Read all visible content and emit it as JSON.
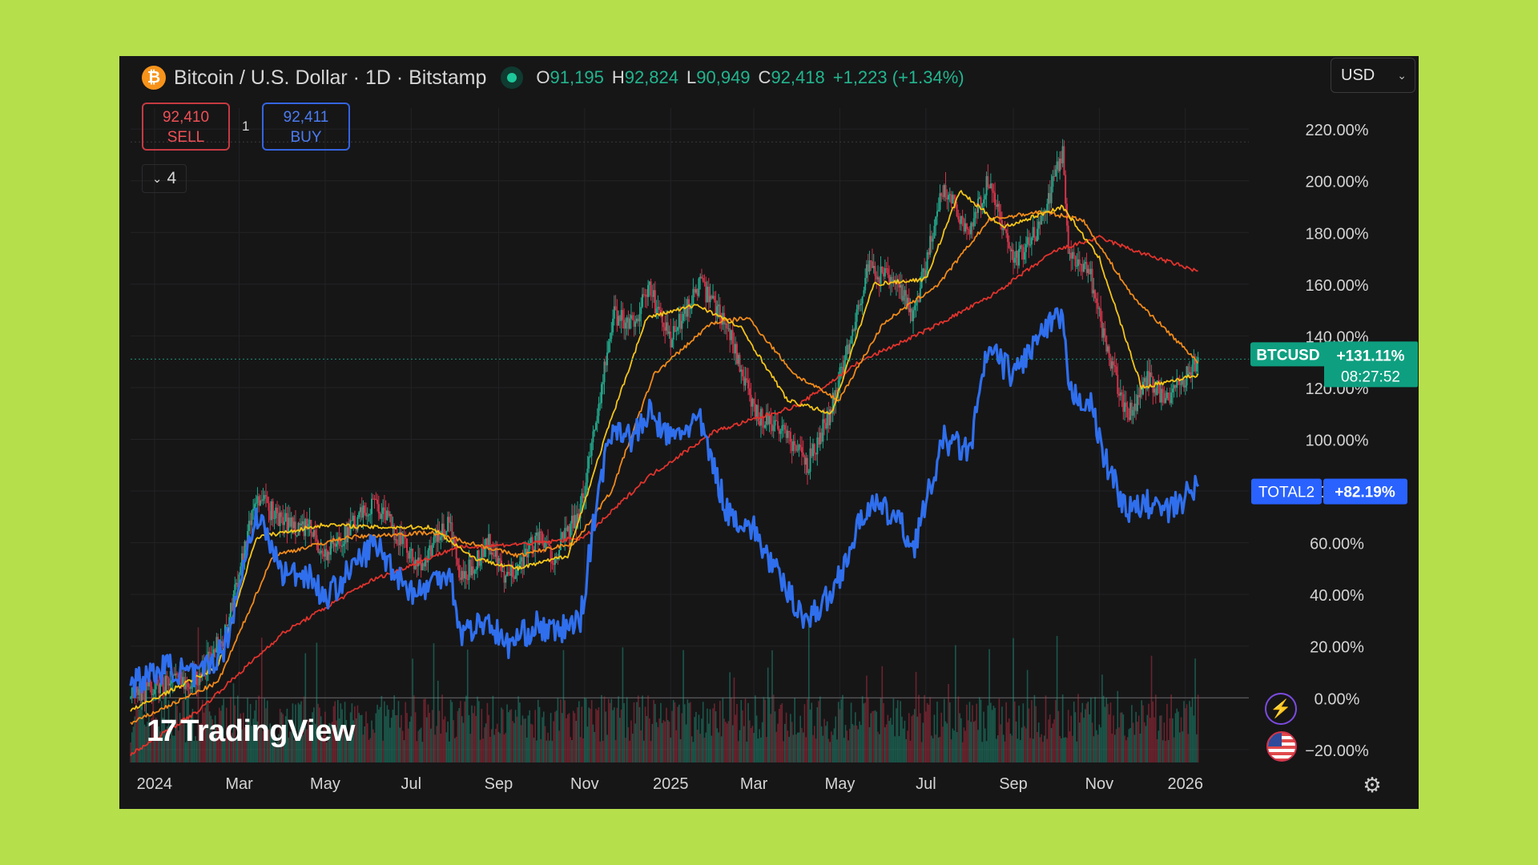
{
  "legend": {
    "symbol_title": "Bitcoin / U.S. Dollar · 1D · Bitstamp",
    "coin_glyph": "₿",
    "ohlc": {
      "o_label": "O",
      "o": "91,195",
      "h_label": "H",
      "h": "92,824",
      "l_label": "L",
      "l": "90,949",
      "c_label": "C",
      "c": "92,418",
      "change": "+1,223 (+1.34%)"
    }
  },
  "currency_select": {
    "value": "USD"
  },
  "trade": {
    "sell_price": "92,410",
    "sell_label": "SELL",
    "buy_price": "92,411",
    "buy_label": "BUY",
    "spread": "1"
  },
  "indicators_toggle": {
    "count": "4"
  },
  "watermark": {
    "text": "TradingView",
    "logo": "17"
  },
  "colors": {
    "background": "#161617",
    "grid": "#232325",
    "btc_up": "#22a78a",
    "btc_down": "#d1344a",
    "total2": "#2f6fee",
    "ma_yellow": "#f5c518",
    "ma_orange": "#f08a1a",
    "ma_red": "#e0332c",
    "btc_badge": "#0e9f80",
    "total2_badge": "#2962ff"
  },
  "chart_data": {
    "type": "line",
    "y_unit": "percent change",
    "ylim": [
      -25,
      225
    ],
    "y_ticks": [
      {
        "v": 220,
        "label": "220.00%"
      },
      {
        "v": 200,
        "label": "200.00%"
      },
      {
        "v": 180,
        "label": "180.00%"
      },
      {
        "v": 160,
        "label": "160.00%"
      },
      {
        "v": 140,
        "label": "140.00%"
      },
      {
        "v": 120,
        "label": "120.00%"
      },
      {
        "v": 100,
        "label": "100.00%"
      },
      {
        "v": 80,
        "label": "80.00%"
      },
      {
        "v": 60,
        "label": "60.00%"
      },
      {
        "v": 40,
        "label": "40.00%"
      },
      {
        "v": 20,
        "label": "20.00%"
      },
      {
        "v": 0,
        "label": "0.00%"
      },
      {
        "v": -20,
        "label": "−20.00%"
      }
    ],
    "x_ticks": [
      {
        "date": "2024-01-01",
        "label": "2024"
      },
      {
        "date": "2024-03-01",
        "label": "Mar"
      },
      {
        "date": "2024-05-01",
        "label": "May"
      },
      {
        "date": "2024-07-01",
        "label": "Jul"
      },
      {
        "date": "2024-09-01",
        "label": "Sep"
      },
      {
        "date": "2024-11-01",
        "label": "Nov"
      },
      {
        "date": "2025-01-01",
        "label": "2025"
      },
      {
        "date": "2025-03-01",
        "label": "Mar"
      },
      {
        "date": "2025-05-01",
        "label": "May"
      },
      {
        "date": "2025-07-01",
        "label": "Jul"
      },
      {
        "date": "2025-09-01",
        "label": "Sep"
      },
      {
        "date": "2025-11-01",
        "label": "Nov"
      },
      {
        "date": "2026-01-01",
        "label": "2026"
      }
    ],
    "x_range": [
      "2023-12-15",
      "2026-02-15"
    ],
    "series": [
      {
        "name": "BTCUSD",
        "style": "candles",
        "points": [
          [
            "2023-12-15",
            0
          ],
          [
            "2024-01-10",
            6
          ],
          [
            "2024-02-01",
            8
          ],
          [
            "2024-02-20",
            25
          ],
          [
            "2024-03-13",
            78
          ],
          [
            "2024-04-01",
            68
          ],
          [
            "2024-04-20",
            65
          ],
          [
            "2024-05-01",
            55
          ],
          [
            "2024-05-20",
            66
          ],
          [
            "2024-06-05",
            76
          ],
          [
            "2024-06-25",
            60
          ],
          [
            "2024-07-05",
            50
          ],
          [
            "2024-07-28",
            68
          ],
          [
            "2024-08-05",
            45
          ],
          [
            "2024-08-25",
            60
          ],
          [
            "2024-09-06",
            45
          ],
          [
            "2024-09-28",
            62
          ],
          [
            "2024-10-10",
            55
          ],
          [
            "2024-10-29",
            72
          ],
          [
            "2024-11-12",
            118
          ],
          [
            "2024-11-22",
            148
          ],
          [
            "2024-12-05",
            145
          ],
          [
            "2024-12-17",
            158
          ],
          [
            "2025-01-01",
            138
          ],
          [
            "2025-01-21",
            160
          ],
          [
            "2025-02-10",
            145
          ],
          [
            "2025-03-01",
            110
          ],
          [
            "2025-03-20",
            105
          ],
          [
            "2025-04-08",
            90
          ],
          [
            "2025-04-25",
            112
          ],
          [
            "2025-05-21",
            166
          ],
          [
            "2025-06-10",
            160
          ],
          [
            "2025-06-22",
            148
          ],
          [
            "2025-07-14",
            198
          ],
          [
            "2025-08-01",
            180
          ],
          [
            "2025-08-14",
            200
          ],
          [
            "2025-09-01",
            168
          ],
          [
            "2025-09-20",
            182
          ],
          [
            "2025-10-06",
            212
          ],
          [
            "2025-10-10",
            172
          ],
          [
            "2025-10-25",
            165
          ],
          [
            "2025-11-05",
            138
          ],
          [
            "2025-11-21",
            108
          ],
          [
            "2025-12-05",
            124
          ],
          [
            "2025-12-20",
            114
          ],
          [
            "2026-01-10",
            131
          ]
        ],
        "last_label": "+131.11%",
        "countdown": "08:27:52"
      },
      {
        "name": "TOTAL2",
        "style": "line",
        "points": [
          [
            "2023-12-15",
            5
          ],
          [
            "2024-01-10",
            12
          ],
          [
            "2024-02-01",
            8
          ],
          [
            "2024-02-20",
            20
          ],
          [
            "2024-03-13",
            72
          ],
          [
            "2024-04-01",
            48
          ],
          [
            "2024-04-20",
            48
          ],
          [
            "2024-05-01",
            38
          ],
          [
            "2024-05-20",
            50
          ],
          [
            "2024-06-05",
            60
          ],
          [
            "2024-06-25",
            45
          ],
          [
            "2024-07-05",
            40
          ],
          [
            "2024-07-28",
            50
          ],
          [
            "2024-08-05",
            25
          ],
          [
            "2024-08-25",
            30
          ],
          [
            "2024-09-06",
            20
          ],
          [
            "2024-09-28",
            28
          ],
          [
            "2024-10-10",
            25
          ],
          [
            "2024-10-29",
            30
          ],
          [
            "2024-11-12",
            85
          ],
          [
            "2024-11-22",
            106
          ],
          [
            "2024-12-05",
            100
          ],
          [
            "2024-12-17",
            110
          ],
          [
            "2025-01-01",
            100
          ],
          [
            "2025-01-21",
            108
          ],
          [
            "2025-02-10",
            72
          ],
          [
            "2025-03-01",
            65
          ],
          [
            "2025-03-20",
            45
          ],
          [
            "2025-04-08",
            30
          ],
          [
            "2025-04-25",
            40
          ],
          [
            "2025-05-21",
            75
          ],
          [
            "2025-06-10",
            70
          ],
          [
            "2025-06-22",
            58
          ],
          [
            "2025-07-14",
            100
          ],
          [
            "2025-08-01",
            95
          ],
          [
            "2025-08-14",
            135
          ],
          [
            "2025-09-01",
            125
          ],
          [
            "2025-09-20",
            140
          ],
          [
            "2025-10-06",
            148
          ],
          [
            "2025-10-10",
            118
          ],
          [
            "2025-10-25",
            115
          ],
          [
            "2025-11-05",
            92
          ],
          [
            "2025-11-21",
            72
          ],
          [
            "2025-12-05",
            75
          ],
          [
            "2025-12-20",
            72
          ],
          [
            "2026-01-10",
            82
          ]
        ],
        "last_label": "+82.19%"
      },
      {
        "style": "line",
        "points": [
          [
            "2023-12-15",
            -5
          ],
          [
            "2024-02-15",
            12
          ],
          [
            "2024-03-13",
            62
          ],
          [
            "2024-05-01",
            67
          ],
          [
            "2024-06-05",
            66
          ],
          [
            "2024-07-15",
            66
          ],
          [
            "2024-08-15",
            54
          ],
          [
            "2024-09-15",
            50
          ],
          [
            "2024-10-20",
            55
          ],
          [
            "2024-11-15",
            100
          ],
          [
            "2024-12-15",
            147
          ],
          [
            "2025-01-20",
            152
          ],
          [
            "2025-02-20",
            143
          ],
          [
            "2025-03-25",
            115
          ],
          [
            "2025-04-25",
            110
          ],
          [
            "2025-05-25",
            160
          ],
          [
            "2025-07-01",
            162
          ],
          [
            "2025-07-25",
            196
          ],
          [
            "2025-08-25",
            182
          ],
          [
            "2025-10-06",
            190
          ],
          [
            "2025-11-01",
            170
          ],
          [
            "2025-12-01",
            120
          ],
          [
            "2026-01-10",
            125
          ]
        ]
      },
      {
        "style": "line",
        "points": [
          [
            "2023-12-15",
            -10
          ],
          [
            "2024-02-15",
            6
          ],
          [
            "2024-03-25",
            55
          ],
          [
            "2024-05-15",
            62
          ],
          [
            "2024-07-15",
            64
          ],
          [
            "2024-09-15",
            55
          ],
          [
            "2024-10-25",
            60
          ],
          [
            "2024-11-20",
            80
          ],
          [
            "2024-12-20",
            125
          ],
          [
            "2025-01-30",
            145
          ],
          [
            "2025-02-25",
            147
          ],
          [
            "2025-03-30",
            125
          ],
          [
            "2025-04-30",
            115
          ],
          [
            "2025-06-01",
            145
          ],
          [
            "2025-07-10",
            160
          ],
          [
            "2025-08-15",
            185
          ],
          [
            "2025-09-20",
            188
          ],
          [
            "2025-10-20",
            185
          ],
          [
            "2025-11-25",
            155
          ],
          [
            "2026-01-10",
            130
          ]
        ]
      },
      {
        "style": "line",
        "points": [
          [
            "2023-12-15",
            -22
          ],
          [
            "2024-02-01",
            -5
          ],
          [
            "2024-04-01",
            25
          ],
          [
            "2024-06-01",
            45
          ],
          [
            "2024-08-01",
            58
          ],
          [
            "2024-10-01",
            60
          ],
          [
            "2024-11-01",
            62
          ],
          [
            "2024-12-15",
            85
          ],
          [
            "2025-02-01",
            103
          ],
          [
            "2025-04-01",
            113
          ],
          [
            "2025-05-15",
            130
          ],
          [
            "2025-07-01",
            142
          ],
          [
            "2025-08-15",
            155
          ],
          [
            "2025-10-01",
            173
          ],
          [
            "2025-11-01",
            178
          ],
          [
            "2025-12-01",
            172
          ],
          [
            "2026-01-10",
            165
          ]
        ]
      }
    ]
  }
}
